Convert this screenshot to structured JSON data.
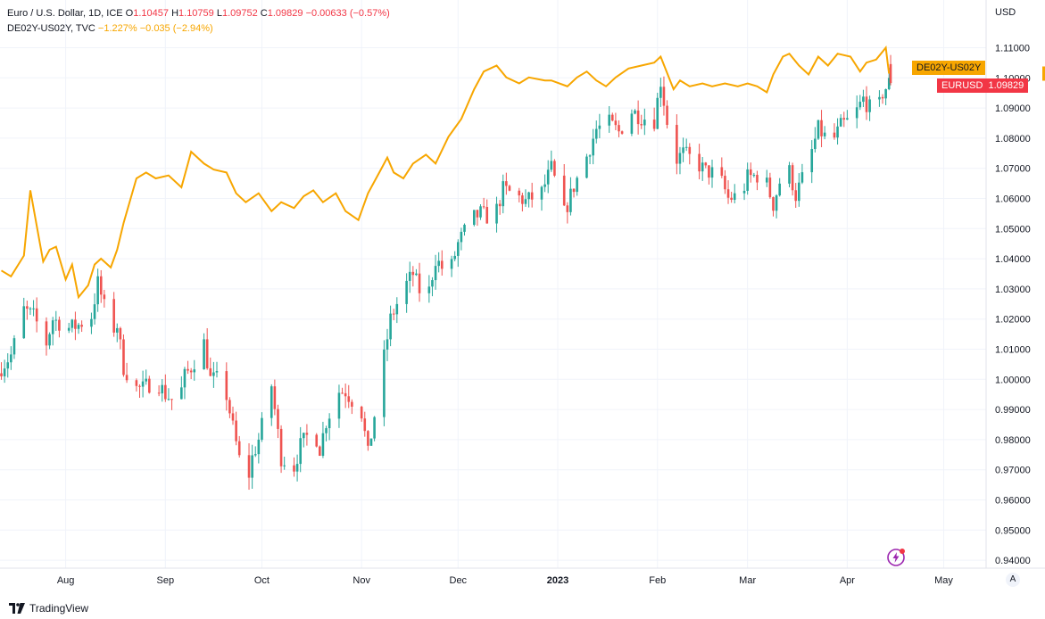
{
  "legend": {
    "symbol": "Euro / U.S. Dollar, 1D, ICE",
    "o_label": "O",
    "o": "1.10457",
    "h_label": "H",
    "h": "1.10759",
    "l_label": "L",
    "l": "1.09752",
    "c_label": "C",
    "c": "1.09829",
    "change": "−0.00633 (−0.57%)",
    "series2": "DE02Y-US02Y, TVC",
    "series2_value": "−1.227%",
    "series2_change": "−0.035 (−2.94%)"
  },
  "currency": "USD",
  "tags": {
    "de_label": "DE02Y-US02Y",
    "eur_label": "EURUSD",
    "eur_value": "1.09829"
  },
  "footer": {
    "brand": "TradingView"
  },
  "autoscale_label": "A",
  "colors": {
    "up": "#26a69a",
    "down": "#ef5350",
    "spread": "#f7a600",
    "grid": "#f0f3fa",
    "axis_text": "#131722",
    "tag_red": "#f23645"
  },
  "chart_data": {
    "type": "line",
    "ylabel": "USD",
    "ylim": [
      0.935,
      1.115
    ],
    "y_ticks": [
      "1.11000",
      "1.10000",
      "1.09000",
      "1.08000",
      "1.07000",
      "1.06000",
      "1.05000",
      "1.04000",
      "1.03000",
      "1.02000",
      "1.01000",
      "1.00000",
      "0.99000",
      "0.98000",
      "0.97000",
      "0.96000",
      "0.95000",
      "0.94000"
    ],
    "x_ticks": [
      "Aug",
      "Sep",
      "Oct",
      "Nov",
      "Dec",
      "2023",
      "Feb",
      "Mar",
      "Apr",
      "May"
    ],
    "x_tick_dates": [
      "2022-08-01",
      "2022-09-01",
      "2022-10-01",
      "2022-11-01",
      "2022-12-01",
      "2023-01-01",
      "2023-02-01",
      "2023-03-01",
      "2023-04-01",
      "2023-05-01"
    ],
    "x_range": [
      "2022-07-12",
      "2023-05-20"
    ],
    "grid": true,
    "series": [
      {
        "name": "EURUSD",
        "kind": "candlestick",
        "close_points": [
          [
            "2022-07-12",
            1.004
          ],
          [
            "2022-07-15",
            1.008
          ],
          [
            "2022-07-19",
            1.023
          ],
          [
            "2022-07-22",
            1.021
          ],
          [
            "2022-07-26",
            1.012
          ],
          [
            "2022-07-28",
            1.02
          ],
          [
            "2022-08-02",
            1.017
          ],
          [
            "2022-08-05",
            1.018
          ],
          [
            "2022-08-09",
            1.021
          ],
          [
            "2022-08-11",
            1.032
          ],
          [
            "2022-08-15",
            1.016
          ],
          [
            "2022-08-17",
            1.018
          ],
          [
            "2022-08-19",
            1.004
          ],
          [
            "2022-08-23",
            0.997
          ],
          [
            "2022-08-25",
            0.997
          ],
          [
            "2022-08-29",
            1.0
          ],
          [
            "2022-09-01",
            0.995
          ],
          [
            "2022-09-05",
            0.992
          ],
          [
            "2022-09-07",
            1.001
          ],
          [
            "2022-09-09",
            1.004
          ],
          [
            "2022-09-13",
            1.012
          ],
          [
            "2022-09-15",
            1.0
          ],
          [
            "2022-09-19",
            1.0
          ],
          [
            "2022-09-22",
            0.984
          ],
          [
            "2022-09-26",
            0.963
          ],
          [
            "2022-09-28",
            0.974
          ],
          [
            "2022-09-30",
            0.98
          ],
          [
            "2022-10-04",
            0.998
          ],
          [
            "2022-10-07",
            0.974
          ],
          [
            "2022-10-11",
            0.971
          ],
          [
            "2022-10-13",
            0.978
          ],
          [
            "2022-10-17",
            0.984
          ],
          [
            "2022-10-19",
            0.977
          ],
          [
            "2022-10-21",
            0.986
          ],
          [
            "2022-10-25",
            0.996
          ],
          [
            "2022-10-27",
            0.996
          ],
          [
            "2022-11-01",
            0.989
          ],
          [
            "2022-11-03",
            0.975
          ],
          [
            "2022-11-07",
            1.001
          ],
          [
            "2022-11-10",
            1.02
          ],
          [
            "2022-11-14",
            1.03
          ],
          [
            "2022-11-17",
            1.035
          ],
          [
            "2022-11-21",
            1.024
          ],
          [
            "2022-11-24",
            1.04
          ],
          [
            "2022-11-28",
            1.034
          ],
          [
            "2022-12-01",
            1.045
          ],
          [
            "2022-12-05",
            1.053
          ],
          [
            "2022-12-08",
            1.055
          ],
          [
            "2022-12-12",
            1.053
          ],
          [
            "2022-12-15",
            1.063
          ],
          [
            "2022-12-19",
            1.061
          ],
          [
            "2022-12-22",
            1.059
          ],
          [
            "2022-12-27",
            1.062
          ],
          [
            "2022-12-30",
            1.07
          ],
          [
            "2023-01-03",
            1.055
          ],
          [
            "2023-01-06",
            1.064
          ],
          [
            "2023-01-10",
            1.074
          ],
          [
            "2023-01-13",
            1.083
          ],
          [
            "2023-01-17",
            1.085
          ],
          [
            "2023-01-20",
            1.082
          ],
          [
            "2023-01-24",
            1.089
          ],
          [
            "2023-01-27",
            1.087
          ],
          [
            "2023-01-31",
            1.086
          ],
          [
            "2023-02-02",
            1.099
          ],
          [
            "2023-02-06",
            1.072
          ],
          [
            "2023-02-09",
            1.075
          ],
          [
            "2023-02-13",
            1.072
          ],
          [
            "2023-02-16",
            1.069
          ],
          [
            "2023-02-20",
            1.068
          ],
          [
            "2023-02-23",
            1.06
          ],
          [
            "2023-02-27",
            1.061
          ],
          [
            "2023-03-01",
            1.067
          ],
          [
            "2023-03-06",
            1.068
          ],
          [
            "2023-03-09",
            1.058
          ],
          [
            "2023-03-13",
            1.073
          ],
          [
            "2023-03-16",
            1.061
          ],
          [
            "2023-03-20",
            1.072
          ],
          [
            "2023-03-23",
            1.083
          ],
          [
            "2023-03-27",
            1.078
          ],
          [
            "2023-03-30",
            1.084
          ],
          [
            "2023-04-03",
            1.087
          ],
          [
            "2023-04-06",
            1.093
          ],
          [
            "2023-04-10",
            1.087
          ],
          [
            "2023-04-12",
            1.095
          ],
          [
            "2023-04-14",
            1.0983
          ]
        ]
      },
      {
        "name": "DE02Y-US02Y",
        "kind": "line",
        "points": [
          [
            "2022-07-12",
            -1.89
          ],
          [
            "2022-07-15",
            -1.91
          ],
          [
            "2022-07-19",
            -1.84
          ],
          [
            "2022-07-21",
            -1.62
          ],
          [
            "2022-07-25",
            -1.86
          ],
          [
            "2022-07-27",
            -1.82
          ],
          [
            "2022-07-29",
            -1.81
          ],
          [
            "2022-08-01",
            -1.92
          ],
          [
            "2022-08-03",
            -1.87
          ],
          [
            "2022-08-05",
            -1.98
          ],
          [
            "2022-08-08",
            -1.94
          ],
          [
            "2022-08-10",
            -1.87
          ],
          [
            "2022-08-12",
            -1.85
          ],
          [
            "2022-08-15",
            -1.88
          ],
          [
            "2022-08-17",
            -1.82
          ],
          [
            "2022-08-19",
            -1.73
          ],
          [
            "2022-08-23",
            -1.58
          ],
          [
            "2022-08-26",
            -1.56
          ],
          [
            "2022-08-29",
            -1.58
          ],
          [
            "2022-09-02",
            -1.57
          ],
          [
            "2022-09-06",
            -1.61
          ],
          [
            "2022-09-08",
            -1.53
          ],
          [
            "2022-09-09",
            -1.49
          ],
          [
            "2022-09-13",
            -1.53
          ],
          [
            "2022-09-16",
            -1.55
          ],
          [
            "2022-09-20",
            -1.56
          ],
          [
            "2022-09-23",
            -1.63
          ],
          [
            "2022-09-26",
            -1.66
          ],
          [
            "2022-09-30",
            -1.63
          ],
          [
            "2022-10-04",
            -1.69
          ],
          [
            "2022-10-07",
            -1.66
          ],
          [
            "2022-10-11",
            -1.68
          ],
          [
            "2022-10-14",
            -1.64
          ],
          [
            "2022-10-17",
            -1.62
          ],
          [
            "2022-10-20",
            -1.66
          ],
          [
            "2022-10-24",
            -1.63
          ],
          [
            "2022-10-27",
            -1.69
          ],
          [
            "2022-10-31",
            -1.72
          ],
          [
            "2022-11-03",
            -1.63
          ],
          [
            "2022-11-07",
            -1.55
          ],
          [
            "2022-11-09",
            -1.51
          ],
          [
            "2022-11-11",
            -1.56
          ],
          [
            "2022-11-14",
            -1.58
          ],
          [
            "2022-11-17",
            -1.53
          ],
          [
            "2022-11-21",
            -1.5
          ],
          [
            "2022-11-24",
            -1.53
          ],
          [
            "2022-11-28",
            -1.44
          ],
          [
            "2022-12-02",
            -1.38
          ],
          [
            "2022-12-06",
            -1.28
          ],
          [
            "2022-12-09",
            -1.22
          ],
          [
            "2022-12-13",
            -1.2
          ],
          [
            "2022-12-16",
            -1.24
          ],
          [
            "2022-12-20",
            -1.26
          ],
          [
            "2022-12-23",
            -1.24
          ],
          [
            "2022-12-28",
            -1.25
          ],
          [
            "2022-12-30",
            -1.25
          ],
          [
            "2023-01-04",
            -1.27
          ],
          [
            "2023-01-07",
            -1.24
          ],
          [
            "2023-01-10",
            -1.22
          ],
          [
            "2023-01-13",
            -1.25
          ],
          [
            "2023-01-16",
            -1.27
          ],
          [
            "2023-01-19",
            -1.24
          ],
          [
            "2023-01-23",
            -1.21
          ],
          [
            "2023-01-27",
            -1.2
          ],
          [
            "2023-01-31",
            -1.19
          ],
          [
            "2023-02-02",
            -1.17
          ],
          [
            "2023-02-06",
            -1.28
          ],
          [
            "2023-02-08",
            -1.25
          ],
          [
            "2023-02-11",
            -1.27
          ],
          [
            "2023-02-15",
            -1.26
          ],
          [
            "2023-02-18",
            -1.27
          ],
          [
            "2023-02-22",
            -1.26
          ],
          [
            "2023-02-26",
            -1.27
          ],
          [
            "2023-03-01",
            -1.26
          ],
          [
            "2023-03-04",
            -1.27
          ],
          [
            "2023-03-07",
            -1.29
          ],
          [
            "2023-03-09",
            -1.23
          ],
          [
            "2023-03-12",
            -1.17
          ],
          [
            "2023-03-14",
            -1.16
          ],
          [
            "2023-03-17",
            -1.2
          ],
          [
            "2023-03-20",
            -1.23
          ],
          [
            "2023-03-23",
            -1.17
          ],
          [
            "2023-03-26",
            -1.2
          ],
          [
            "2023-03-29",
            -1.16
          ],
          [
            "2023-04-02",
            -1.17
          ],
          [
            "2023-04-05",
            -1.22
          ],
          [
            "2023-04-07",
            -1.19
          ],
          [
            "2023-04-10",
            -1.18
          ],
          [
            "2023-04-13",
            -1.14
          ],
          [
            "2023-04-14",
            -1.227
          ]
        ]
      }
    ]
  }
}
